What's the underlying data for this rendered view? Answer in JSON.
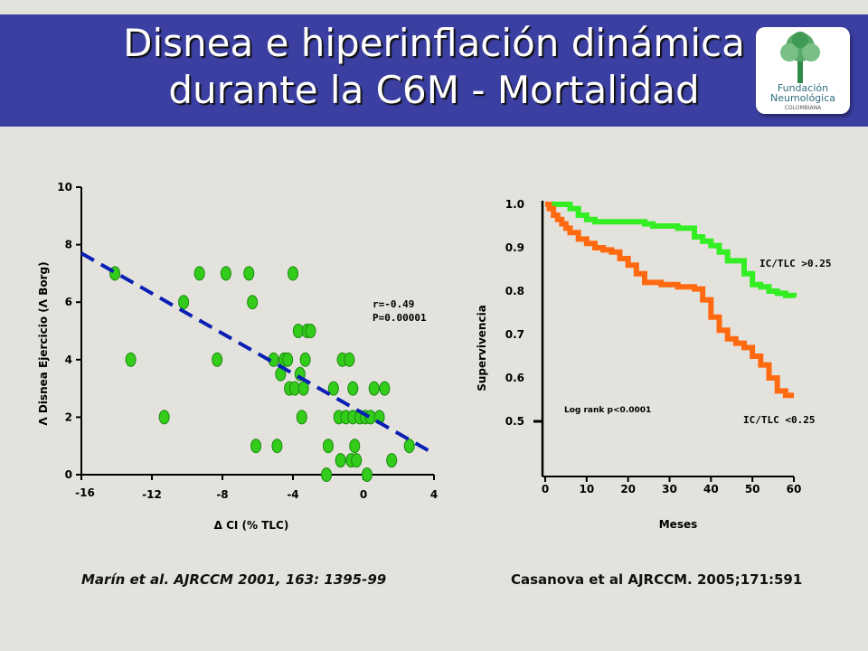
{
  "title": {
    "line1": "Disnea e hiperinflación dinámica",
    "line2": "durante la C6M - Mortalidad"
  },
  "logo": {
    "line1": "Fundación",
    "line2": "Neumológica",
    "line3": "COLOMBIANA",
    "icon": "tree-icon"
  },
  "colors": {
    "banner": "#3b3fa2",
    "points": "#33cc1a",
    "regression": "#0a1fb4",
    "ic_high": "#33ee22",
    "ic_low": "#ff6a10"
  },
  "chart_data": [
    {
      "type": "scatter",
      "title": "",
      "xlabel": "Δ CI (% TLC)",
      "ylabel": "Λ Disnea Ejercicio (Λ Borg)",
      "xlim": [
        -16,
        4
      ],
      "ylim": [
        0,
        10
      ],
      "xticks": [
        "-16",
        "-12",
        "-8",
        "-4",
        "0",
        "4"
      ],
      "yticks": [
        "0",
        "2",
        "4",
        "6",
        "8",
        "10"
      ],
      "annotation": [
        "r=-0.49",
        "P=0.00001"
      ],
      "regression": {
        "x": [
          -16,
          3.8
        ],
        "y": [
          7.7,
          0.8
        ]
      },
      "points": [
        [
          -14.1,
          7
        ],
        [
          -13.2,
          4
        ],
        [
          -11.3,
          2
        ],
        [
          -10.2,
          6
        ],
        [
          -9.3,
          7
        ],
        [
          -8.3,
          4
        ],
        [
          -7.8,
          7
        ],
        [
          -6.5,
          7
        ],
        [
          -6.3,
          6
        ],
        [
          -6.1,
          1
        ],
        [
          -5.1,
          4
        ],
        [
          -4.9,
          1
        ],
        [
          -4.7,
          3.5
        ],
        [
          -4.5,
          4
        ],
        [
          -4.3,
          4
        ],
        [
          -4.2,
          3
        ],
        [
          -4.0,
          7
        ],
        [
          -3.9,
          3
        ],
        [
          -3.7,
          5
        ],
        [
          -3.6,
          3.5
        ],
        [
          -3.5,
          2
        ],
        [
          -3.4,
          3
        ],
        [
          -3.3,
          4
        ],
        [
          -3.2,
          5
        ],
        [
          -3.0,
          5
        ],
        [
          -2.1,
          0
        ],
        [
          -2.0,
          1
        ],
        [
          -1.7,
          3
        ],
        [
          -1.4,
          2
        ],
        [
          -1.3,
          0.5
        ],
        [
          -1.2,
          4
        ],
        [
          -1.0,
          2
        ],
        [
          -0.8,
          4
        ],
        [
          -0.7,
          0.5
        ],
        [
          -0.6,
          2
        ],
        [
          -0.6,
          3
        ],
        [
          -0.5,
          1
        ],
        [
          -0.4,
          0.5
        ],
        [
          -0.2,
          2
        ],
        [
          0.1,
          2
        ],
        [
          0.2,
          0
        ],
        [
          0.4,
          2
        ],
        [
          0.6,
          3
        ],
        [
          0.9,
          2
        ],
        [
          1.2,
          3
        ],
        [
          1.6,
          0.5
        ],
        [
          2.6,
          1
        ]
      ]
    },
    {
      "type": "line",
      "title": "",
      "xlabel": "Meses",
      "ylabel": "Supervivencia",
      "xlim": [
        0,
        60
      ],
      "ylim": [
        0.5,
        1.0
      ],
      "xticks": [
        "0",
        "10",
        "20",
        "30",
        "40",
        "50",
        "60"
      ],
      "yticks": [
        "0.5",
        "0.6",
        "0.7",
        "0.8",
        "0.9",
        "1.0"
      ],
      "annotation": "Log rank p<0.0001",
      "series": [
        {
          "name": "IC/TLC >0.25",
          "x": [
            0,
            5,
            6,
            8,
            10,
            12,
            24,
            26,
            32,
            36,
            38,
            40,
            42,
            44,
            48,
            50,
            52,
            54,
            56,
            58,
            60
          ],
          "y": [
            1.0,
            1.0,
            0.99,
            0.975,
            0.965,
            0.96,
            0.955,
            0.95,
            0.945,
            0.925,
            0.915,
            0.905,
            0.89,
            0.87,
            0.84,
            0.815,
            0.81,
            0.8,
            0.795,
            0.79,
            0.785
          ]
        },
        {
          "name": "IC/TLC <0.25",
          "x": [
            0,
            1,
            2,
            3,
            4,
            5,
            6,
            8,
            10,
            12,
            14,
            16,
            18,
            20,
            22,
            24,
            28,
            32,
            36,
            38,
            40,
            42,
            44,
            46,
            48,
            50,
            52,
            54,
            56,
            58,
            60
          ],
          "y": [
            1.0,
            0.99,
            0.975,
            0.965,
            0.955,
            0.945,
            0.935,
            0.92,
            0.91,
            0.9,
            0.895,
            0.89,
            0.875,
            0.86,
            0.84,
            0.82,
            0.815,
            0.81,
            0.805,
            0.78,
            0.74,
            0.71,
            0.69,
            0.68,
            0.67,
            0.65,
            0.63,
            0.6,
            0.57,
            0.56,
            0.56
          ]
        }
      ]
    }
  ],
  "citations": {
    "left": "Marín et al. AJRCCM 2001, 163: 1395-99",
    "right": "Casanova et al AJRCCM. 2005;171:591"
  }
}
